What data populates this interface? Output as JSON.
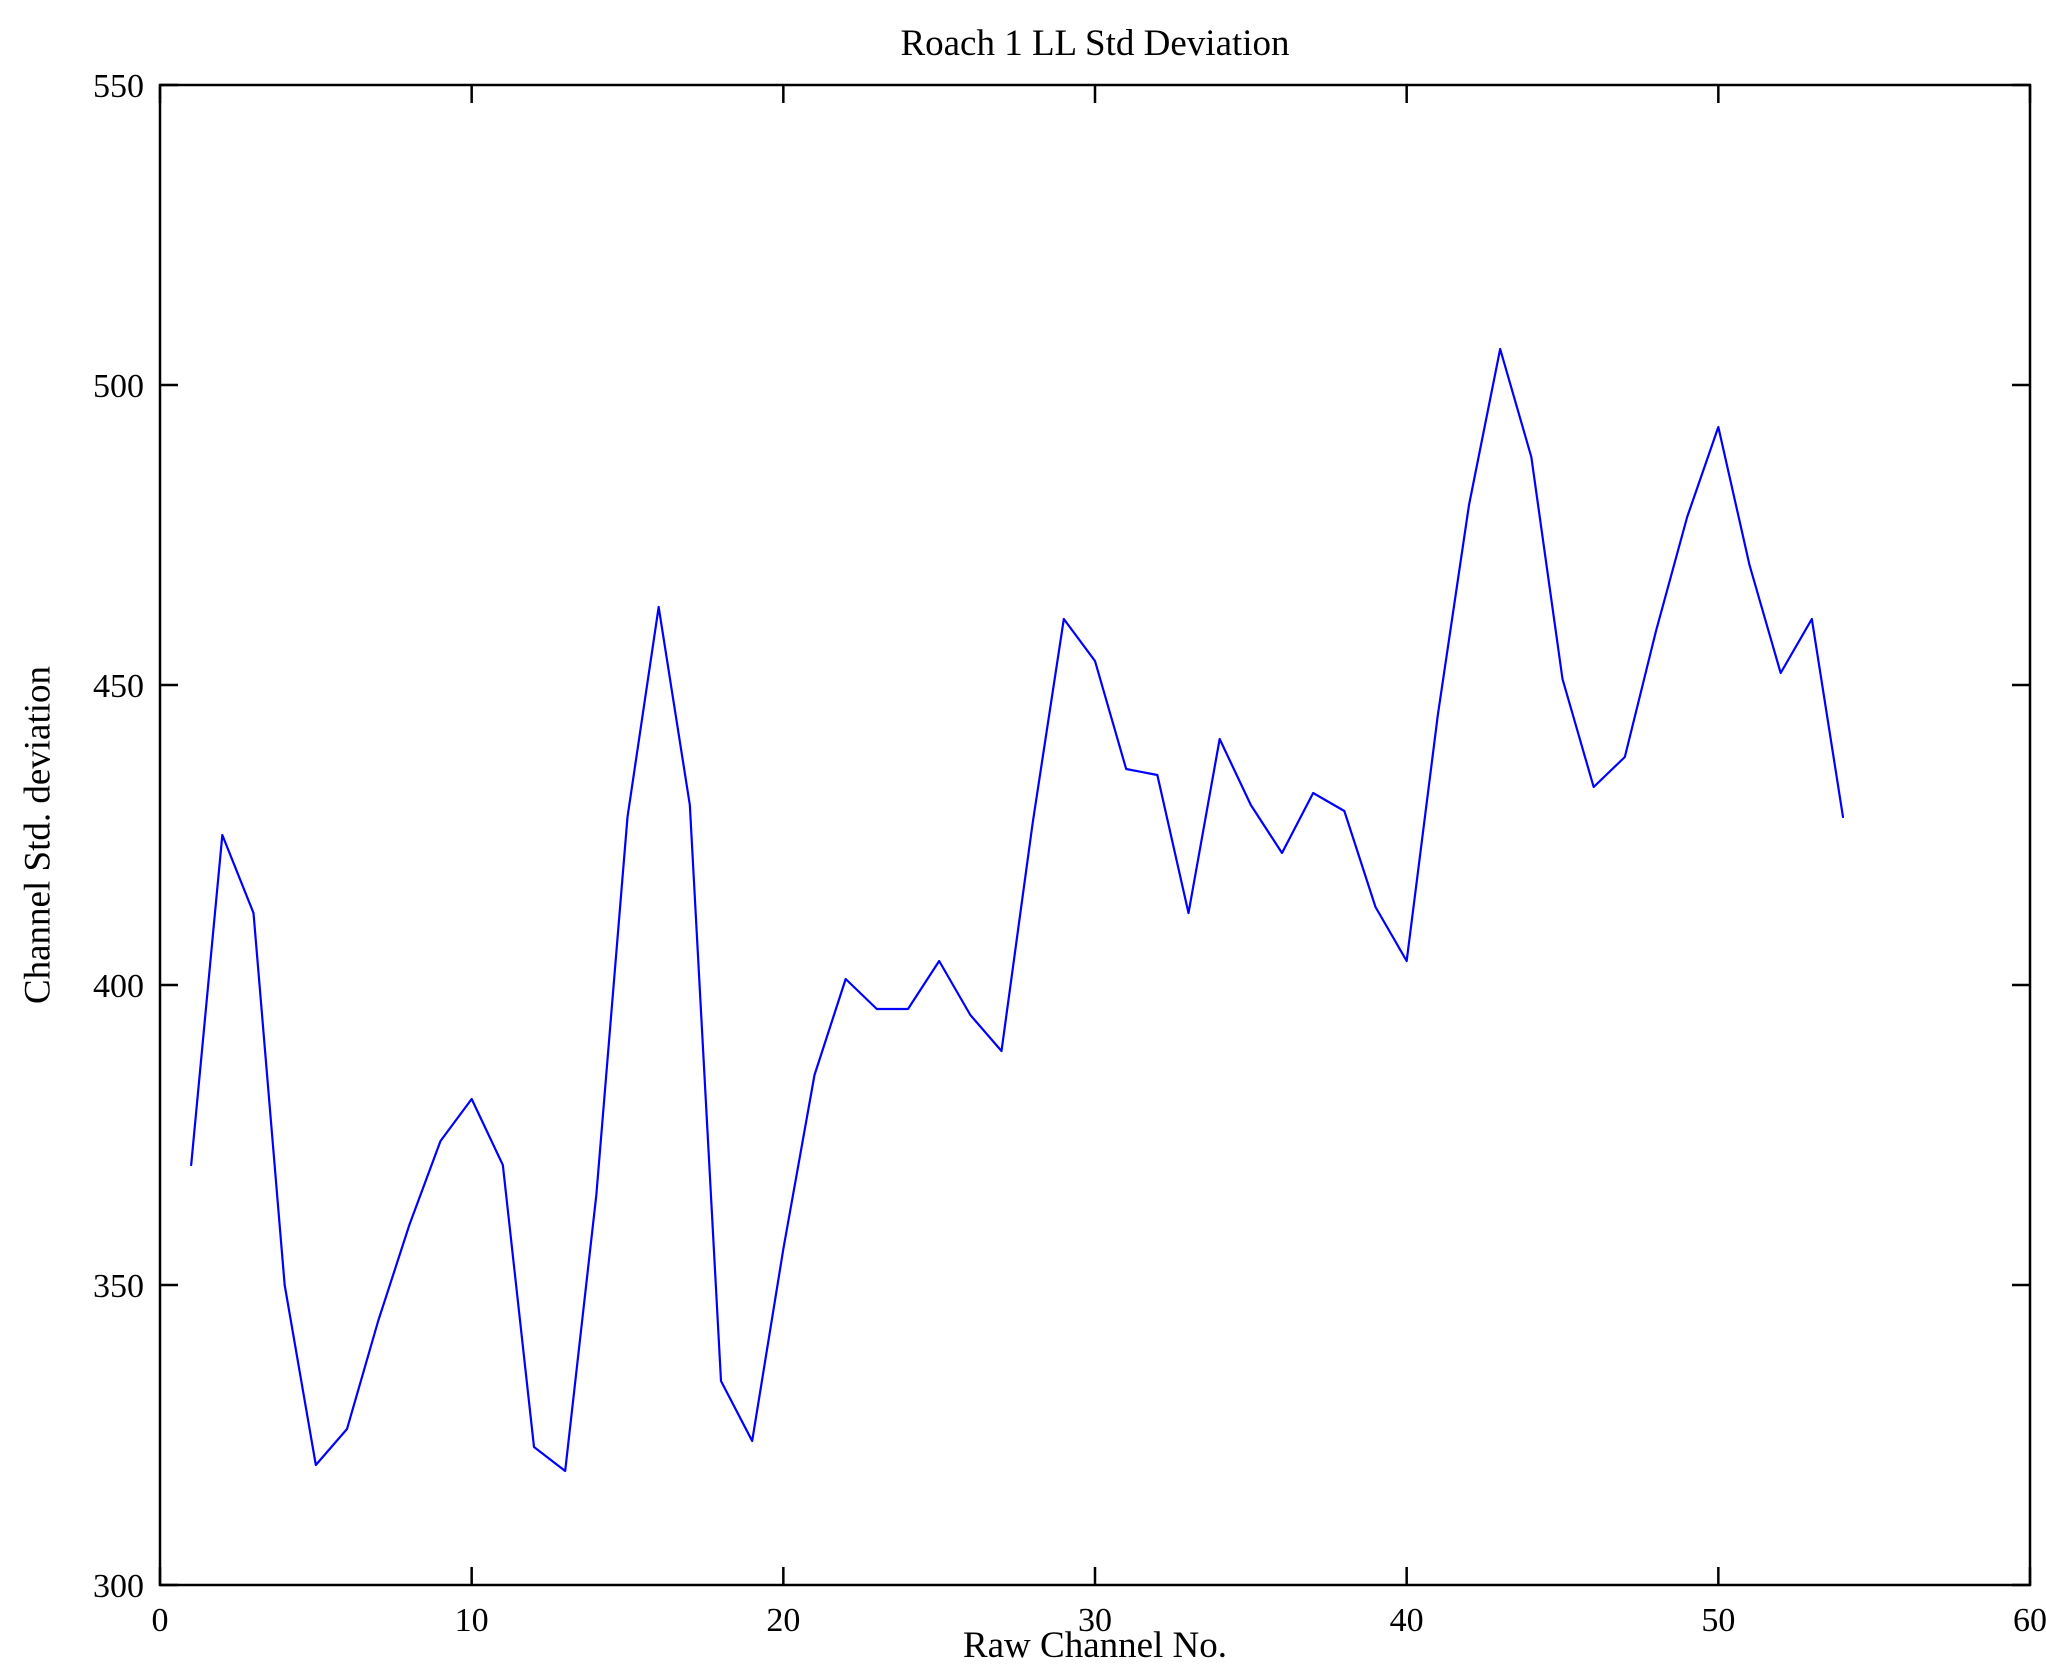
{
  "chart_data": {
    "type": "line",
    "title": "Roach 1 LL Std Deviation",
    "xlabel": "Raw Channel No.",
    "ylabel": "Channel Std. deviation",
    "xlim": [
      0,
      60
    ],
    "ylim": [
      300,
      550
    ],
    "xticks": [
      0,
      10,
      20,
      30,
      40,
      50,
      60
    ],
    "yticks": [
      300,
      350,
      400,
      450,
      500,
      550
    ],
    "grid": false,
    "legend_position": "none",
    "line_color": "#0000FF",
    "axes_color": "#000000",
    "background_color": "#FFFFFF",
    "series_name": "Channel Std. deviation",
    "x": [
      1,
      2,
      3,
      4,
      5,
      6,
      7,
      8,
      9,
      10,
      11,
      12,
      13,
      14,
      15,
      16,
      17,
      18,
      19,
      20,
      21,
      22,
      23,
      24,
      25,
      26,
      27,
      28,
      29,
      30,
      31,
      32,
      33,
      34,
      35,
      36,
      37,
      38,
      39,
      40,
      41,
      42,
      43,
      44,
      45,
      46,
      47,
      48,
      49,
      50,
      51,
      52,
      53,
      54
    ],
    "y": [
      370,
      425,
      412,
      350,
      320,
      326,
      344,
      360,
      374,
      381,
      370,
      323,
      319,
      365,
      428,
      463,
      430,
      334,
      324,
      356,
      385,
      401,
      396,
      396,
      404,
      395,
      389,
      427,
      461,
      454,
      436,
      435,
      412,
      441,
      430,
      422,
      432,
      429,
      413,
      404,
      445,
      480,
      506,
      488,
      451,
      433,
      438,
      459,
      478,
      493,
      470,
      452,
      461,
      428
    ]
  }
}
